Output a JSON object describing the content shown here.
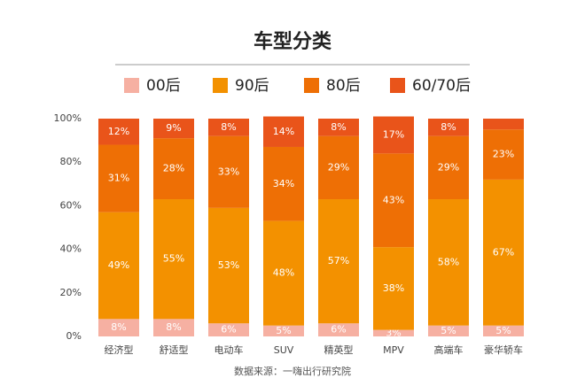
{
  "chart_data": {
    "type": "bar",
    "stacked": true,
    "title": "车型分类",
    "categories": [
      "经济型",
      "舒适型",
      "电动车",
      "SUV",
      "精英型",
      "MPV",
      "高端车",
      "豪华轿车"
    ],
    "series": [
      {
        "name": "00后",
        "color": "#f6b0a2",
        "values": [
          8,
          8,
          6,
          5,
          6,
          3,
          5,
          5
        ],
        "value_labels": [
          "8%",
          "8%",
          "6%",
          "5%",
          "6%",
          "3%",
          "5%",
          "5%"
        ]
      },
      {
        "name": "90后",
        "color": "#f39100",
        "values": [
          49,
          55,
          53,
          48,
          57,
          38,
          58,
          67
        ],
        "value_labels": [
          "49%",
          "55%",
          "53%",
          "48%",
          "57%",
          "38%",
          "58%",
          "67%"
        ]
      },
      {
        "name": "80后",
        "color": "#ee6f05",
        "values": [
          31,
          28,
          33,
          34,
          29,
          43,
          29,
          23
        ],
        "value_labels": [
          "31%",
          "28%",
          "33%",
          "34%",
          "29%",
          "43%",
          "29%",
          "23%"
        ]
      },
      {
        "name": "60/70后",
        "color": "#e9541a",
        "values": [
          12,
          9,
          8,
          14,
          8,
          17,
          8,
          5
        ],
        "value_labels": [
          "12%",
          "9%",
          "8%",
          "14%",
          "8%",
          "17%",
          "8%",
          null
        ]
      }
    ],
    "ylim": [
      0,
      100
    ],
    "yticks": [
      {
        "value": 0,
        "label": "0%"
      },
      {
        "value": 20,
        "label": "20%"
      },
      {
        "value": 40,
        "label": "40%"
      },
      {
        "value": 60,
        "label": "60%"
      },
      {
        "value": 80,
        "label": "80%"
      },
      {
        "value": 100,
        "label": "100%"
      }
    ],
    "source": "数据来源：一嗨出行研究院"
  }
}
